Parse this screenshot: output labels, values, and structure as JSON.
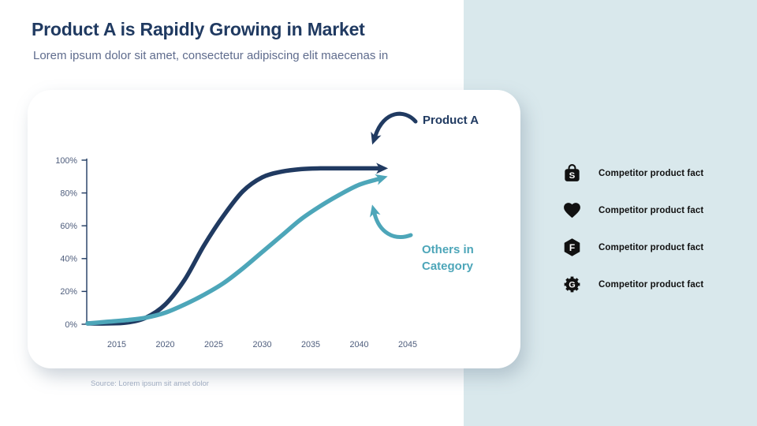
{
  "page": {
    "title": "Product A is Rapidly Growing in Market",
    "subtitle": "Lorem ipsum dolor sit amet, consectetur adipiscing elit maecenas in",
    "source": "Source: Lorem ipsum sit amet dolor"
  },
  "colors": {
    "navy": "#203a61",
    "teal": "#4da6b9",
    "panel": "#d9e8ec",
    "axis_text": "#4e5d7c",
    "subtitle_text": "#5f6c8d",
    "source_text": "#9fabc0",
    "fact_text": "#111111"
  },
  "chart_data": {
    "type": "line",
    "x": [
      2012,
      2014,
      2016,
      2018,
      2020,
      2022,
      2024,
      2026,
      2028,
      2030,
      2032,
      2034,
      2036,
      2038,
      2040,
      2042
    ],
    "series": [
      {
        "name": "Product A",
        "color": "#203a61",
        "values": [
          0.5,
          0.5,
          1,
          4,
          12,
          27,
          48,
          66,
          81,
          89.5,
          93,
          94.5,
          95,
          95,
          95,
          95
        ]
      },
      {
        "name": "Others in Category",
        "color": "#4da6b9",
        "values": [
          0.5,
          1.5,
          2.5,
          4,
          7,
          12,
          18,
          25,
          34,
          44,
          54,
          64,
          72,
          79,
          85,
          88.5
        ]
      }
    ],
    "xticks": [
      2015,
      2020,
      2025,
      2030,
      2035,
      2040,
      2045
    ],
    "yticks": [
      0,
      20,
      40,
      60,
      80,
      100
    ],
    "ytick_suffix": "%",
    "xlim": [
      2012,
      2047
    ],
    "ylim": [
      0,
      100
    ],
    "grid": false,
    "legend": "curved-arrow annotations pointing at line ends"
  },
  "facts": [
    {
      "icon": "shopping-bag-s-icon",
      "badge": "S",
      "label": "Competitor product fact"
    },
    {
      "icon": "heart-icon",
      "badge": "",
      "label": "Competitor product fact"
    },
    {
      "icon": "hexagon-f-icon",
      "badge": "F",
      "label": "Competitor product fact"
    },
    {
      "icon": "gear-g-icon",
      "badge": "G",
      "label": "Competitor product fact"
    }
  ]
}
